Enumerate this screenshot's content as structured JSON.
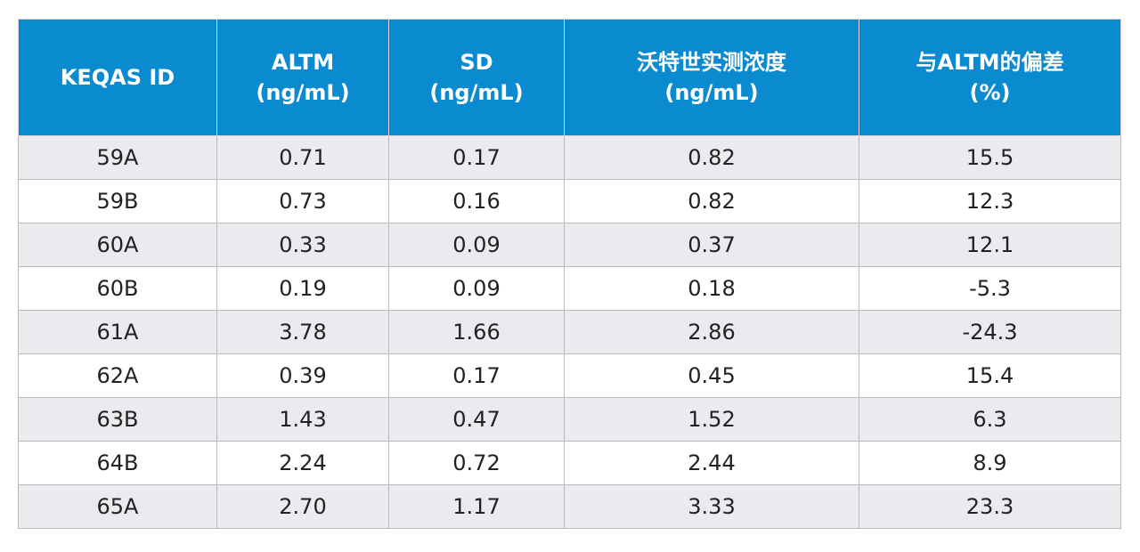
{
  "table": {
    "headers": [
      {
        "line1": "KEQAS ID",
        "line2": ""
      },
      {
        "line1": "ALTM",
        "line2": "(ng/mL)"
      },
      {
        "line1": "SD",
        "line2": "(ng/mL)"
      },
      {
        "line1": "沃特世实测浓度",
        "line2": "(ng/mL)"
      },
      {
        "line1": "与ALTM的偏差",
        "line2": "(%)"
      }
    ],
    "rows": [
      [
        "59A",
        "0.71",
        "0.17",
        "0.82",
        "15.5"
      ],
      [
        "59B",
        "0.73",
        "0.16",
        "0.82",
        "12.3"
      ],
      [
        "60A",
        "0.33",
        "0.09",
        "0.37",
        "12.1"
      ],
      [
        "60B",
        "0.19",
        "0.09",
        "0.18",
        "-5.3"
      ],
      [
        "61A",
        "3.78",
        "1.66",
        "2.86",
        "-24.3"
      ],
      [
        "62A",
        "0.39",
        "0.17",
        "0.45",
        "15.4"
      ],
      [
        "63B",
        "1.43",
        "0.47",
        "1.52",
        "6.3"
      ],
      [
        "64B",
        "2.24",
        "0.72",
        "2.44",
        "8.9"
      ],
      [
        "65A",
        "2.70",
        "1.17",
        "3.33",
        "23.3"
      ]
    ]
  },
  "colors": {
    "header_background": "#0a8bd0",
    "header_text": "#ffffff",
    "row_shaded": "#ebebef",
    "row_plain": "#ffffff",
    "border": "#b9b9b9"
  }
}
